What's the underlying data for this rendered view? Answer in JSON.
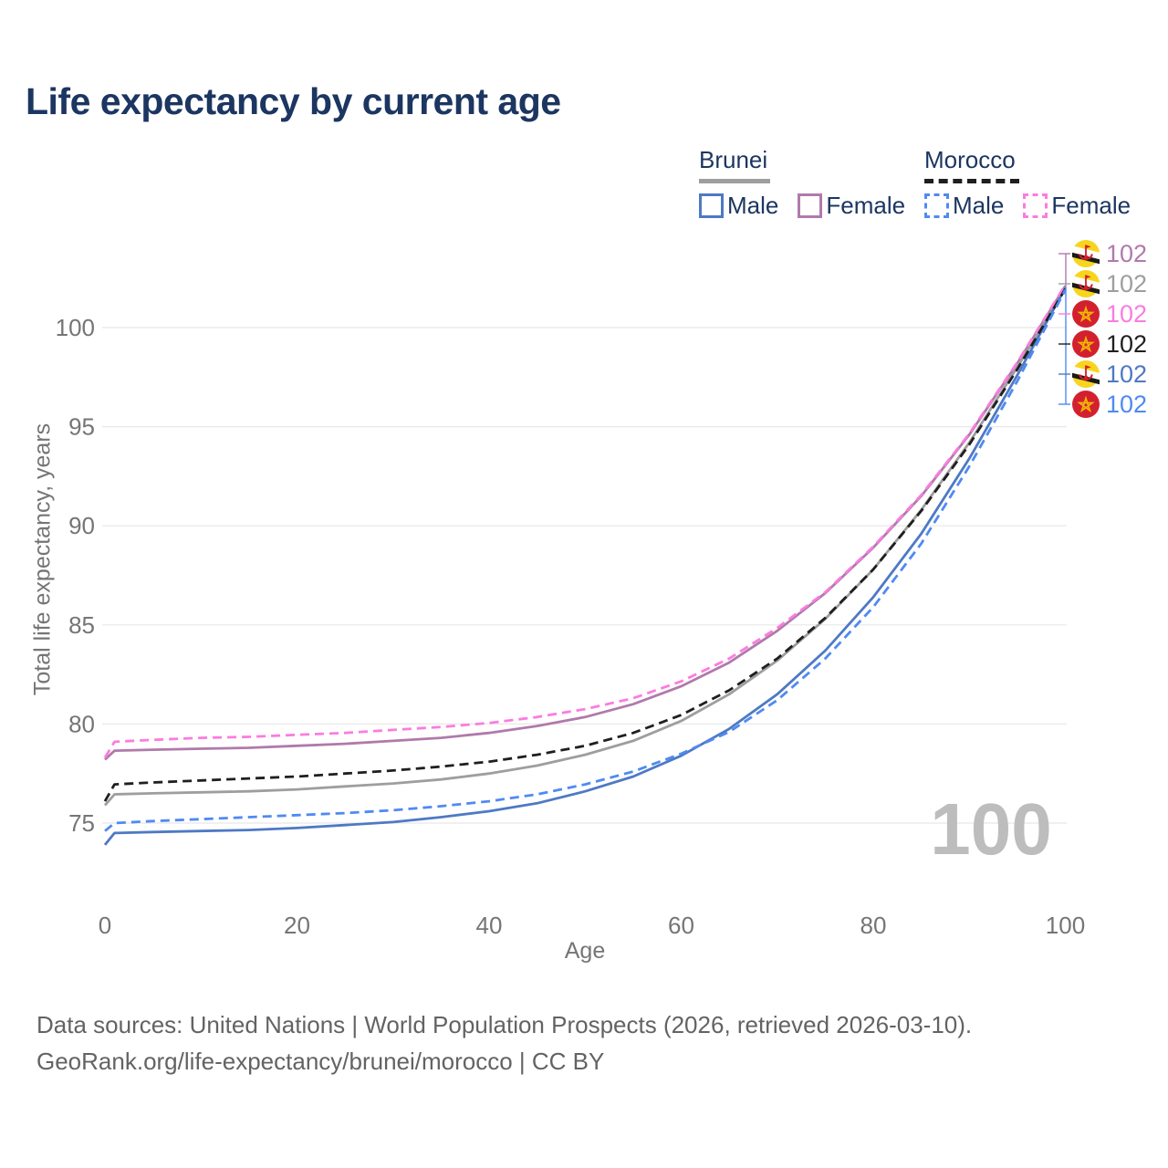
{
  "title": "Life expectancy by current age",
  "legend": {
    "groups": [
      {
        "country": "Brunei",
        "line": "solid",
        "underline_color": "#9e9e9e",
        "items": [
          {
            "label": "Male",
            "color": "#4e79c4"
          },
          {
            "label": "Female",
            "color": "#b07aab"
          }
        ]
      },
      {
        "country": "Morocco",
        "line": "dashed",
        "underline_color": "#1f1f1f",
        "items": [
          {
            "label": "Male",
            "color": "#4f8af2"
          },
          {
            "label": "Female",
            "color": "#fb7ce0"
          }
        ]
      }
    ]
  },
  "chart_data": {
    "type": "line",
    "title": "Life expectancy by current age",
    "xlabel": "Age",
    "ylabel": "Total life expectancy, years",
    "x": [
      0,
      1,
      5,
      10,
      15,
      20,
      25,
      30,
      35,
      40,
      45,
      50,
      55,
      60,
      65,
      70,
      75,
      80,
      85,
      90,
      95,
      100
    ],
    "xticks": [
      0,
      20,
      40,
      60,
      80,
      100
    ],
    "yticks": [
      75,
      80,
      85,
      90,
      95,
      100
    ],
    "xlim": [
      0,
      100
    ],
    "ylim": [
      72.5,
      103.5
    ],
    "grid": "horizontal",
    "legend_position": "top-right",
    "series": [
      {
        "name": "Brunei Female",
        "country": "Brunei",
        "sex": "female",
        "line": "solid",
        "color": "#b07aab",
        "values": [
          78.2,
          78.65,
          78.7,
          78.75,
          78.8,
          78.9,
          79.0,
          79.15,
          79.3,
          79.55,
          79.9,
          80.35,
          81.0,
          81.9,
          83.1,
          84.7,
          86.6,
          88.9,
          91.5,
          94.6,
          98.2,
          102.1
        ]
      },
      {
        "name": "Morocco Female",
        "country": "Morocco",
        "sex": "female",
        "line": "dashed",
        "color": "#fb7ce0",
        "values": [
          78.3,
          79.1,
          79.2,
          79.3,
          79.35,
          79.45,
          79.55,
          79.7,
          79.85,
          80.05,
          80.35,
          80.75,
          81.3,
          82.15,
          83.3,
          84.85,
          86.65,
          88.95,
          91.55,
          94.65,
          98.25,
          102.15
        ]
      },
      {
        "name": "Brunei Total",
        "country": "Brunei",
        "sex": "both",
        "line": "solid",
        "color": "#9e9e9e",
        "values": [
          75.9,
          76.45,
          76.5,
          76.55,
          76.6,
          76.7,
          76.85,
          77.0,
          77.2,
          77.5,
          77.9,
          78.45,
          79.15,
          80.15,
          81.5,
          83.2,
          85.3,
          87.8,
          90.8,
          94.2,
          98.0,
          102.0
        ]
      },
      {
        "name": "Morocco Total",
        "country": "Morocco",
        "sex": "both",
        "line": "dashed",
        "color": "#1f1f1f",
        "values": [
          76.1,
          76.95,
          77.05,
          77.15,
          77.25,
          77.35,
          77.5,
          77.65,
          77.85,
          78.1,
          78.45,
          78.9,
          79.55,
          80.45,
          81.7,
          83.3,
          85.35,
          87.8,
          90.75,
          94.1,
          97.9,
          101.95
        ]
      },
      {
        "name": "Brunei Male",
        "country": "Brunei",
        "sex": "male",
        "line": "solid",
        "color": "#4e79c4",
        "values": [
          73.9,
          74.5,
          74.55,
          74.6,
          74.65,
          74.75,
          74.9,
          75.05,
          75.3,
          75.6,
          76.0,
          76.6,
          77.35,
          78.4,
          79.75,
          81.5,
          83.7,
          86.4,
          89.6,
          93.4,
          97.6,
          102.0
        ]
      },
      {
        "name": "Morocco Male",
        "country": "Morocco",
        "sex": "male",
        "line": "dashed",
        "color": "#4f8af2",
        "values": [
          74.6,
          75.0,
          75.1,
          75.2,
          75.3,
          75.4,
          75.5,
          75.65,
          75.85,
          76.1,
          76.45,
          76.95,
          77.6,
          78.5,
          79.6,
          81.2,
          83.3,
          85.9,
          89.1,
          93.0,
          97.3,
          101.9
        ]
      }
    ]
  },
  "end_labels": [
    {
      "flag": "brunei",
      "value": "102",
      "color": "#b07aab",
      "series": "Brunei Female"
    },
    {
      "flag": "brunei",
      "value": "102",
      "color": "#9e9e9e",
      "series": "Brunei Total"
    },
    {
      "flag": "morocco",
      "value": "102",
      "color": "#fb7ce0",
      "series": "Morocco Female"
    },
    {
      "flag": "morocco",
      "value": "102",
      "color": "#1f1f1f",
      "series": "Morocco Total"
    },
    {
      "flag": "brunei",
      "value": "102",
      "color": "#4e79c4",
      "series": "Brunei Male"
    },
    {
      "flag": "morocco",
      "value": "102",
      "color": "#4f8af2",
      "series": "Morocco Male"
    }
  ],
  "watermark": "100",
  "footer": {
    "line1": "Data sources: United Nations | World Population Prospects (2026, retrieved 2026-03-10).",
    "line2": "GeoRank.org/life-expectancy/brunei/morocco | CC BY"
  },
  "palette": {
    "title_text": "#1c3661",
    "axis_text": "#757575",
    "footer_text": "#636363",
    "gridline": "#e8e8e8",
    "watermark": "#bdbdbd",
    "brunei_flag_yellow": "#f7d51d",
    "morocco_flag_red": "#d3202f",
    "morocco_star_gold": "#f2b705"
  }
}
